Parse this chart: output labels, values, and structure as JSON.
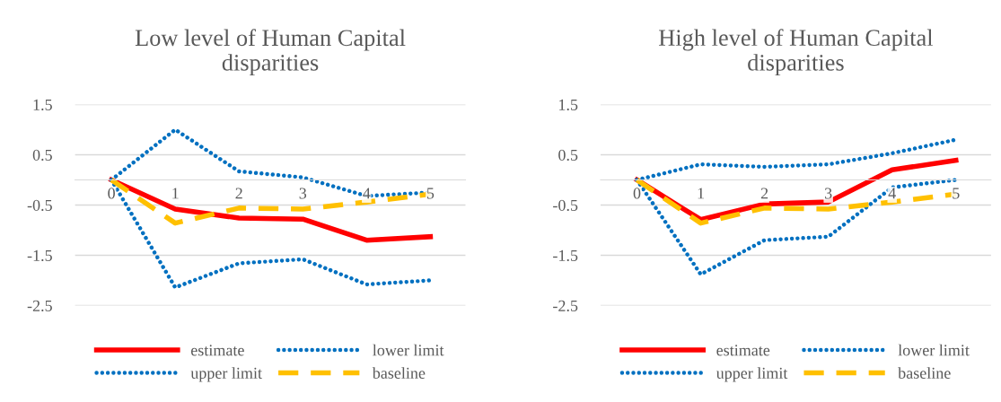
{
  "chart_data": [
    {
      "type": "line",
      "title": "Low level of Human Capital disparities",
      "categories": [
        "0",
        "1",
        "2",
        "3",
        "4",
        "5"
      ],
      "ylim": [
        -2.5,
        1.5
      ],
      "yticks": [
        1.5,
        0.5,
        -0.5,
        -1.5,
        -2.5
      ],
      "grid": "y",
      "legend": "bottom",
      "marker": "none",
      "series": [
        {
          "name": "estimate",
          "color": "#ff0000",
          "line_style": "solid",
          "values": [
            0,
            -0.58,
            -0.76,
            -0.78,
            -1.2,
            -1.13
          ]
        },
        {
          "name": "lower limit",
          "color": "#0070c0",
          "line_style": "dotted",
          "values": [
            0,
            -2.14,
            -1.66,
            -1.58,
            -2.08,
            -2.0
          ]
        },
        {
          "name": "upper limit",
          "color": "#0070c0",
          "line_style": "dotted",
          "values": [
            0,
            1.0,
            0.17,
            0.05,
            -0.32,
            -0.25
          ]
        },
        {
          "name": "baseline",
          "color": "#ffc000",
          "line_style": "dashed",
          "values": [
            0,
            -0.86,
            -0.56,
            -0.58,
            -0.44,
            -0.28
          ]
        }
      ]
    },
    {
      "type": "line",
      "title": "High level of Human Capital disparities",
      "categories": [
        "0",
        "1",
        "2",
        "3",
        "4",
        "5"
      ],
      "ylim": [
        -2.5,
        1.5
      ],
      "yticks": [
        1.5,
        0.5,
        -0.5,
        -1.5,
        -2.5
      ],
      "grid": "y",
      "legend": "bottom",
      "marker": "none",
      "series": [
        {
          "name": "estimate",
          "color": "#ff0000",
          "line_style": "solid",
          "values": [
            0,
            -0.79,
            -0.48,
            -0.44,
            0.2,
            0.39
          ]
        },
        {
          "name": "lower limit",
          "color": "#0070c0",
          "line_style": "dotted",
          "values": [
            0,
            -1.88,
            -1.2,
            -1.13,
            -0.15,
            0
          ]
        },
        {
          "name": "upper limit",
          "color": "#0070c0",
          "line_style": "dotted",
          "values": [
            0,
            0.31,
            0.26,
            0.31,
            0.53,
            0.8
          ]
        },
        {
          "name": "baseline",
          "color": "#ffc000",
          "line_style": "dashed",
          "values": [
            0,
            -0.86,
            -0.56,
            -0.58,
            -0.44,
            -0.28
          ]
        }
      ]
    }
  ]
}
